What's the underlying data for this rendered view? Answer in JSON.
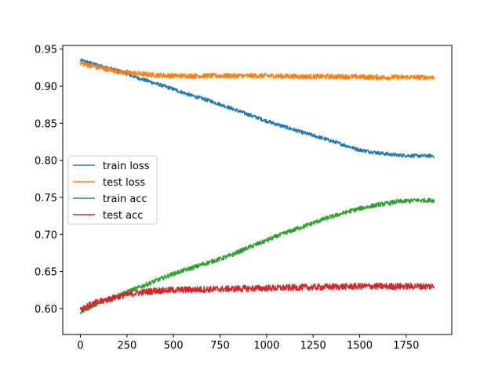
{
  "chart_data": {
    "type": "line",
    "title": "",
    "xlabel": "",
    "ylabel": "",
    "xlim": [
      -95,
      1995
    ],
    "ylim": [
      0.565,
      0.955
    ],
    "x_ticks": [
      0,
      250,
      500,
      750,
      1000,
      1250,
      1500,
      1750
    ],
    "y_ticks": [
      0.6,
      0.65,
      0.7,
      0.75,
      0.8,
      0.85,
      0.9,
      0.95
    ],
    "grid": false,
    "legend_position": "center-left",
    "x_range": [
      0,
      1900
    ],
    "series": [
      {
        "name": "train loss",
        "color": "#1f77b4",
        "noise": 0.0025,
        "values": [
          [
            0,
            0.935
          ],
          [
            100,
            0.928
          ],
          [
            200,
            0.921
          ],
          [
            300,
            0.912
          ],
          [
            400,
            0.904
          ],
          [
            500,
            0.896
          ],
          [
            600,
            0.887
          ],
          [
            700,
            0.88
          ],
          [
            800,
            0.871
          ],
          [
            900,
            0.862
          ],
          [
            1000,
            0.853
          ],
          [
            1100,
            0.845
          ],
          [
            1200,
            0.837
          ],
          [
            1300,
            0.83
          ],
          [
            1400,
            0.822
          ],
          [
            1500,
            0.814
          ],
          [
            1600,
            0.81
          ],
          [
            1700,
            0.807
          ],
          [
            1800,
            0.806
          ],
          [
            1900,
            0.806
          ]
        ]
      },
      {
        "name": "test loss",
        "color": "#ff7f0e",
        "noise": 0.0035,
        "values": [
          [
            0,
            0.931
          ],
          [
            100,
            0.925
          ],
          [
            200,
            0.92
          ],
          [
            300,
            0.917
          ],
          [
            400,
            0.915
          ],
          [
            500,
            0.914
          ],
          [
            600,
            0.914
          ],
          [
            800,
            0.914
          ],
          [
            1000,
            0.914
          ],
          [
            1200,
            0.913
          ],
          [
            1400,
            0.913
          ],
          [
            1600,
            0.912
          ],
          [
            1900,
            0.912
          ]
        ]
      },
      {
        "name": "train acc",
        "color": "#2ca02c",
        "noise": 0.003,
        "values": [
          [
            0,
            0.595
          ],
          [
            100,
            0.608
          ],
          [
            200,
            0.618
          ],
          [
            300,
            0.627
          ],
          [
            400,
            0.637
          ],
          [
            500,
            0.647
          ],
          [
            600,
            0.655
          ],
          [
            700,
            0.663
          ],
          [
            800,
            0.671
          ],
          [
            900,
            0.682
          ],
          [
            1000,
            0.692
          ],
          [
            1100,
            0.702
          ],
          [
            1200,
            0.711
          ],
          [
            1300,
            0.72
          ],
          [
            1400,
            0.728
          ],
          [
            1500,
            0.735
          ],
          [
            1600,
            0.74
          ],
          [
            1700,
            0.744
          ],
          [
            1800,
            0.746
          ],
          [
            1900,
            0.746
          ]
        ]
      },
      {
        "name": "test acc",
        "color": "#d62728",
        "noise": 0.0045,
        "values": [
          [
            0,
            0.6
          ],
          [
            100,
            0.609
          ],
          [
            200,
            0.616
          ],
          [
            300,
            0.621
          ],
          [
            400,
            0.624
          ],
          [
            500,
            0.625
          ],
          [
            700,
            0.626
          ],
          [
            900,
            0.627
          ],
          [
            1100,
            0.628
          ],
          [
            1300,
            0.629
          ],
          [
            1500,
            0.63
          ],
          [
            1700,
            0.63
          ],
          [
            1900,
            0.63
          ]
        ]
      }
    ]
  }
}
